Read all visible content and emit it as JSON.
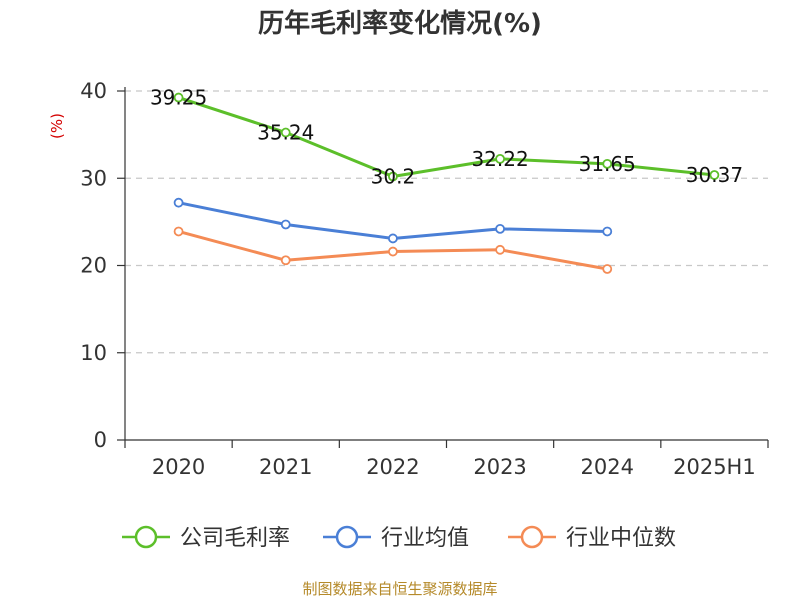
{
  "chart_data": {
    "type": "line",
    "title": "历年毛利率变化情况(%)",
    "ylabel": "(%)",
    "categories": [
      "2020",
      "2021",
      "2022",
      "2023",
      "2024",
      "2025H1"
    ],
    "ylim": [
      0,
      40
    ],
    "yticks": [
      0,
      10,
      20,
      30,
      40
    ],
    "grid": true,
    "legend_position": "bottom",
    "series": [
      {
        "name": "公司毛利率",
        "color": "#5cbf2a",
        "values": [
          39.25,
          35.24,
          30.2,
          32.22,
          31.65,
          30.37
        ],
        "labels": [
          "39.25",
          "35.24",
          "30.2",
          "32.22",
          "31.65",
          "30.37"
        ]
      },
      {
        "name": "行业均值",
        "color": "#4a7fd6",
        "values": [
          27.2,
          24.7,
          23.1,
          24.2,
          23.9,
          null
        ],
        "labels": []
      },
      {
        "name": "行业中位数",
        "color": "#f48b55",
        "values": [
          23.9,
          20.6,
          21.6,
          21.8,
          19.6,
          null
        ],
        "labels": []
      }
    ]
  },
  "source": "制图数据来自恒生聚源数据库"
}
